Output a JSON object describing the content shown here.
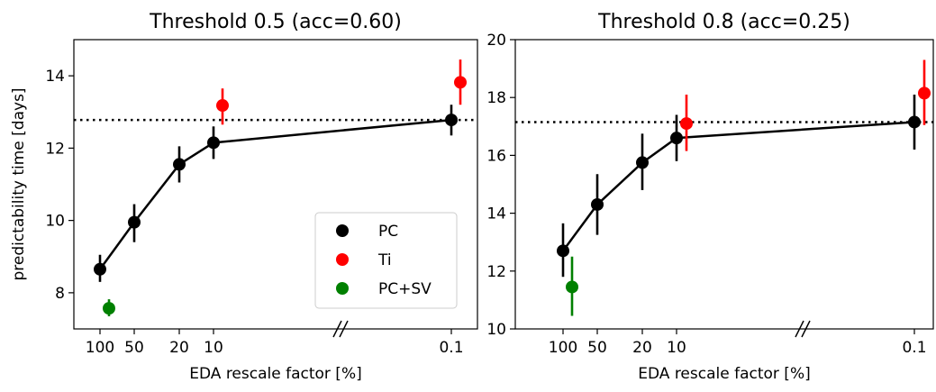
{
  "figure": {
    "ylabel": "predictability time [days]",
    "xlabel": "EDA rescale factor [%]"
  },
  "legend": {
    "entries": [
      {
        "label": "PC",
        "color": "#000000"
      },
      {
        "label": "Ti",
        "color": "#ff0000"
      },
      {
        "label": "PC+SV",
        "color": "#008000"
      }
    ]
  },
  "chart_data": [
    {
      "type": "scatter",
      "title": "Threshold 0.5 (acc=0.60)",
      "xlabel": "EDA rescale factor [%]",
      "ylabel": "predictability time [days]",
      "x_tick_labels": [
        "100",
        "50",
        "20",
        "10",
        "0.1"
      ],
      "x_axis_break": true,
      "ylim": [
        7,
        15
      ],
      "yticks": [
        8,
        10,
        12,
        14
      ],
      "reference_line": {
        "y": 12.78,
        "style": "dotted"
      },
      "series": [
        {
          "name": "PC",
          "color": "#000000",
          "connected": true,
          "points": [
            {
              "x": "100",
              "y": 8.65,
              "err_low": 8.3,
              "err_high": 9.05
            },
            {
              "x": "50",
              "y": 9.95,
              "err_low": 9.4,
              "err_high": 10.45
            },
            {
              "x": "20",
              "y": 11.55,
              "err_low": 11.05,
              "err_high": 12.05
            },
            {
              "x": "10",
              "y": 12.15,
              "err_low": 11.7,
              "err_high": 12.6
            },
            {
              "x": "0.1",
              "y": 12.78,
              "err_low": 12.35,
              "err_high": 13.2
            }
          ]
        },
        {
          "name": "Ti",
          "color": "#ff0000",
          "connected": false,
          "points": [
            {
              "x": "10",
              "y": 13.18,
              "err_low": 12.65,
              "err_high": 13.65
            },
            {
              "x": "0.1",
              "y": 13.82,
              "err_low": 13.2,
              "err_high": 14.45
            }
          ]
        },
        {
          "name": "PC+SV",
          "color": "#008000",
          "connected": false,
          "points": [
            {
              "x": "100",
              "y": 7.57,
              "err_low": 7.35,
              "err_high": 7.82
            }
          ]
        }
      ]
    },
    {
      "type": "scatter",
      "title": "Threshold 0.8 (acc=0.25)",
      "xlabel": "EDA rescale factor [%]",
      "ylabel": "",
      "x_tick_labels": [
        "100",
        "50",
        "20",
        "10",
        "0.1"
      ],
      "x_axis_break": true,
      "ylim": [
        10,
        20
      ],
      "yticks": [
        10,
        12,
        14,
        16,
        18,
        20
      ],
      "reference_line": {
        "y": 17.15,
        "style": "dotted"
      },
      "series": [
        {
          "name": "PC",
          "color": "#000000",
          "connected": true,
          "points": [
            {
              "x": "100",
              "y": 12.7,
              "err_low": 11.8,
              "err_high": 13.65
            },
            {
              "x": "50",
              "y": 14.3,
              "err_low": 13.25,
              "err_high": 15.35
            },
            {
              "x": "20",
              "y": 15.75,
              "err_low": 14.8,
              "err_high": 16.75
            },
            {
              "x": "10",
              "y": 16.6,
              "err_low": 15.8,
              "err_high": 17.4
            },
            {
              "x": "0.1",
              "y": 17.15,
              "err_low": 16.2,
              "err_high": 18.1
            }
          ]
        },
        {
          "name": "Ti",
          "color": "#ff0000",
          "connected": false,
          "points": [
            {
              "x": "10",
              "y": 17.1,
              "err_low": 16.15,
              "err_high": 18.1
            },
            {
              "x": "0.1",
              "y": 18.15,
              "err_low": 17.05,
              "err_high": 19.3
            }
          ]
        },
        {
          "name": "PC+SV",
          "color": "#008000",
          "connected": false,
          "points": [
            {
              "x": "100",
              "y": 11.45,
              "err_low": 10.45,
              "err_high": 12.5
            }
          ]
        }
      ]
    }
  ]
}
